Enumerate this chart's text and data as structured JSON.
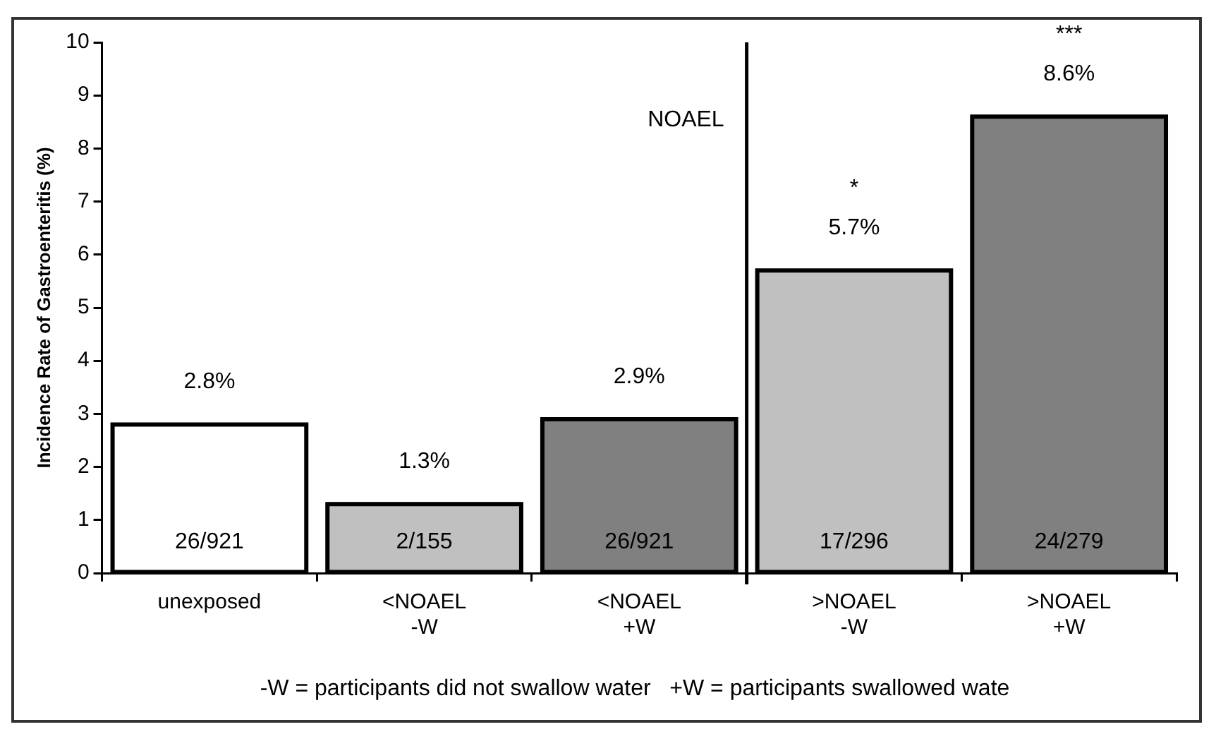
{
  "chart_data": {
    "type": "bar",
    "ylabel": "Incidence Rate of Gastroenteritis (%)",
    "categories": [
      "unexposed",
      "<NOAEL\n-W",
      "<NOAEL\n+W",
      ">NOAEL\n-W",
      ">NOAEL\n+W"
    ],
    "values": [
      2.8,
      1.3,
      2.9,
      5.7,
      8.6
    ],
    "colors": [
      "#ffffff",
      "#c0c0c0",
      "#808080",
      "#c0c0c0",
      "#808080"
    ],
    "value_labels": [
      "2.8%",
      "1.3%",
      "2.9%",
      "5.7%",
      "8.6%"
    ],
    "ylim": [
      0,
      10
    ],
    "yticks": [
      0,
      1,
      2,
      3,
      4,
      5,
      6,
      7,
      8,
      9,
      10
    ],
    "grid": false,
    "legend": false,
    "annotations": [
      "26/921",
      "2/155",
      "26/921",
      "17/296",
      "24/279",
      "NOAEL",
      "*",
      "***",
      "-W = participants did not swallow water   +W = participants swallowed wate"
    ]
  }
}
